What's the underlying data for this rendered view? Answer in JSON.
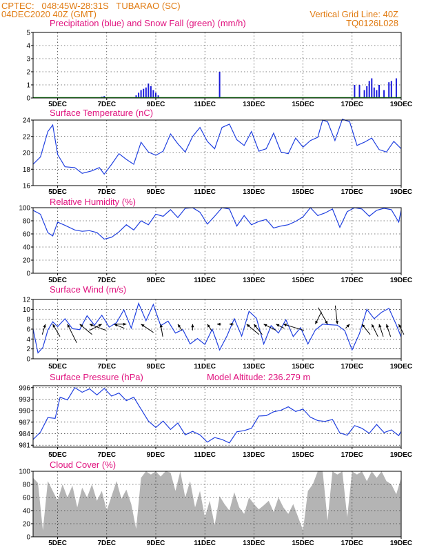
{
  "header": {
    "line1_left": "CPTEC:   048:45W-28:31S   TUBARAO (SC)",
    "line2_left": "04DEC2020 40Z (GMT)",
    "line2_right": "Vertical Grid Line: 40Z",
    "line3_right": "TQ0126L028"
  },
  "colors": {
    "header": "#e07a10",
    "panel_title": "#e0127e",
    "precipitation": "#1a1adc",
    "snowfall": "#1ea01e",
    "series_line": "#2040e0",
    "wind_arrow": "#000000",
    "cloud_fill": "#b4b4b4"
  },
  "x_axis": {
    "day_range": [
      4,
      19
    ],
    "tick_days": [
      5,
      7,
      9,
      11,
      13,
      15,
      17,
      19
    ],
    "tick_labels": [
      "5DEC",
      "7DEC",
      "9DEC",
      "11DEC",
      "13DEC",
      "15DEC",
      "17DEC",
      "19DEC"
    ]
  },
  "chart_data": [
    {
      "id": "precip",
      "type": "bar",
      "title": "Precipitation (blue) and Snow Fall (green) (mm/h)",
      "ylim": [
        0,
        5
      ],
      "yticks": [
        0,
        1,
        2,
        3,
        4,
        5
      ],
      "grid": true,
      "x": [
        6.8,
        6.9,
        8.2,
        8.3,
        8.4,
        8.5,
        8.6,
        8.7,
        8.8,
        8.9,
        9.0,
        9.1,
        11.6,
        17.1,
        17.3,
        17.5,
        17.6,
        17.7,
        17.8,
        17.9,
        18.0,
        18.1,
        18.3,
        18.5,
        18.6,
        18.8
      ],
      "values": [
        0.1,
        0.15,
        0.2,
        0.4,
        0.6,
        0.7,
        0.8,
        1.1,
        0.9,
        0.6,
        0.4,
        0.2,
        2.0,
        1.0,
        1.0,
        0.6,
        0.9,
        1.3,
        1.5,
        0.8,
        0.6,
        1.0,
        0.6,
        1.2,
        1.3,
        1.5
      ],
      "snow_values": [
        0,
        0,
        0,
        0,
        0,
        0,
        0,
        0,
        0,
        0,
        0,
        0,
        0,
        0,
        0,
        0,
        0,
        0,
        0,
        0,
        0,
        0,
        0,
        0,
        0,
        0
      ]
    },
    {
      "id": "temperature",
      "type": "line",
      "title": "Surface Temperature (nC)",
      "ylim": [
        16,
        24
      ],
      "yticks": [
        16,
        18,
        20,
        22,
        24
      ],
      "grid": true,
      "x": [
        4.0,
        4.3,
        4.6,
        4.8,
        5.0,
        5.3,
        5.7,
        6.0,
        6.4,
        6.7,
        6.9,
        7.2,
        7.5,
        7.8,
        8.1,
        8.4,
        8.7,
        9.0,
        9.3,
        9.6,
        9.9,
        10.2,
        10.5,
        10.8,
        11.1,
        11.4,
        11.7,
        12.0,
        12.3,
        12.6,
        12.9,
        13.2,
        13.5,
        13.8,
        14.1,
        14.4,
        14.7,
        15.0,
        15.3,
        15.6,
        15.8,
        16.0,
        16.3,
        16.6,
        16.9,
        17.2,
        17.5,
        17.8,
        18.1,
        18.4,
        18.7,
        19.0
      ],
      "values": [
        18.6,
        19.5,
        22.6,
        23.4,
        19.8,
        18.3,
        18.2,
        17.5,
        17.8,
        18.2,
        17.4,
        18.6,
        19.9,
        19.2,
        18.6,
        21.3,
        20.1,
        19.7,
        20.2,
        22.3,
        21.1,
        20.1,
        22.0,
        23.1,
        21.4,
        20.5,
        23.1,
        23.5,
        21.6,
        20.9,
        22.6,
        20.2,
        20.5,
        22.4,
        20.1,
        19.9,
        21.8,
        20.7,
        21.5,
        21.9,
        24.0,
        23.8,
        21.5,
        24.1,
        23.8,
        20.9,
        21.3,
        21.8,
        20.4,
        20.1,
        21.4,
        20.5
      ]
    },
    {
      "id": "humidity",
      "type": "line",
      "title": "Relative Humidity (%)",
      "ylim": [
        0,
        100
      ],
      "yticks": [
        0,
        20,
        40,
        60,
        80,
        100
      ],
      "grid": true,
      "x": [
        4.0,
        4.3,
        4.6,
        4.8,
        5.0,
        5.3,
        5.7,
        6.0,
        6.3,
        6.6,
        6.9,
        7.2,
        7.5,
        7.8,
        8.1,
        8.4,
        8.7,
        9.0,
        9.3,
        9.6,
        9.9,
        10.2,
        10.5,
        10.8,
        11.1,
        11.4,
        11.7,
        12.0,
        12.3,
        12.6,
        12.9,
        13.2,
        13.5,
        13.8,
        14.1,
        14.4,
        14.7,
        15.0,
        15.3,
        15.6,
        15.9,
        16.2,
        16.5,
        16.8,
        17.1,
        17.4,
        17.7,
        18.0,
        18.3,
        18.6,
        18.9,
        19.0
      ],
      "values": [
        96,
        90,
        62,
        57,
        78,
        73,
        66,
        64,
        65,
        62,
        52,
        55,
        63,
        74,
        66,
        80,
        74,
        90,
        87,
        97,
        85,
        99,
        100,
        93,
        75,
        87,
        100,
        98,
        72,
        88,
        74,
        79,
        82,
        69,
        72,
        74,
        79,
        86,
        100,
        88,
        92,
        98,
        70,
        94,
        100,
        98,
        87,
        96,
        99,
        97,
        78,
        96
      ]
    },
    {
      "id": "wind",
      "type": "line",
      "title": "Surface Wind (m/s)",
      "ylim": [
        0,
        12
      ],
      "yticks": [
        0,
        2,
        4,
        6,
        8,
        10,
        12
      ],
      "grid": true,
      "x": [
        4.0,
        4.2,
        4.4,
        4.6,
        4.8,
        5.0,
        5.3,
        5.6,
        5.9,
        6.2,
        6.5,
        6.8,
        7.1,
        7.4,
        7.7,
        8.0,
        8.3,
        8.6,
        8.9,
        9.2,
        9.5,
        9.8,
        10.1,
        10.4,
        10.7,
        11.0,
        11.3,
        11.6,
        11.9,
        12.2,
        12.5,
        12.8,
        13.1,
        13.4,
        13.7,
        14.0,
        14.3,
        14.6,
        14.9,
        15.2,
        15.5,
        15.8,
        16.1,
        16.4,
        16.7,
        17.0,
        17.3,
        17.6,
        17.9,
        18.2,
        18.5,
        18.8,
        19.0
      ],
      "values": [
        6.0,
        1.2,
        2.3,
        5.8,
        7.5,
        6.5,
        8.1,
        6.1,
        5.9,
        8.7,
        6.8,
        8.8,
        6.4,
        7.3,
        9.9,
        6.2,
        11.2,
        7.7,
        11.0,
        6.7,
        7.6,
        5.2,
        5.9,
        3.0,
        4.1,
        2.9,
        6.0,
        1.8,
        4.6,
        8.1,
        4.6,
        9.6,
        8.2,
        3.0,
        6.7,
        5.2,
        7.9,
        4.5,
        6.3,
        3.0,
        5.8,
        7.0,
        6.9,
        6.8,
        5.7,
        1.8,
        5.1,
        10.0,
        8.1,
        9.4,
        10.2,
        6.9,
        4.4
      ],
      "arrows": [
        {
          "x": 4.5,
          "dx": 0.15,
          "dy": 0.5
        },
        {
          "x": 4.8,
          "dx": -0.35,
          "dy": 0.6
        },
        {
          "x": 5.4,
          "dx": -0.45,
          "dy": 0.9
        },
        {
          "x": 5.9,
          "dx": -0.6,
          "dy": 0.5
        },
        {
          "x": 6.3,
          "dx": -0.8,
          "dy": 0.3
        },
        {
          "x": 6.8,
          "dx": 0.6,
          "dy": 0.3
        },
        {
          "x": 7.3,
          "dx": -0.5,
          "dy": 0.2
        },
        {
          "x": 7.8,
          "dx": 0.5,
          "dy": 0.0
        },
        {
          "x": 8.4,
          "dx": -0.6,
          "dy": 0.4
        },
        {
          "x": 9.2,
          "dx": -0.1,
          "dy": 0.6
        },
        {
          "x": 9.9,
          "dx": -0.2,
          "dy": 0.3
        },
        {
          "x": 10.5,
          "dx": 0.0,
          "dy": 0.3
        },
        {
          "x": 11.1,
          "dx": -0.2,
          "dy": 0.3
        },
        {
          "x": 11.5,
          "dx": -0.2,
          "dy": 0.0
        },
        {
          "x": 12.0,
          "dx": -0.2,
          "dy": 0.0
        },
        {
          "x": 12.7,
          "dx": -0.6,
          "dy": 0.5
        },
        {
          "x": 13.0,
          "dx": -0.4,
          "dy": 0.5
        },
        {
          "x": 13.4,
          "dx": -0.6,
          "dy": 0.3
        },
        {
          "x": 13.9,
          "dx": -0.4,
          "dy": 0.2
        },
        {
          "x": 14.2,
          "dx": -1.0,
          "dy": 0.3
        },
        {
          "x": 15.5,
          "dx": -0.3,
          "dy": -0.6
        },
        {
          "x": 16.0,
          "dx": 0.45,
          "dy": -0.8
        },
        {
          "x": 16.4,
          "dx": 0.1,
          "dy": -0.9
        },
        {
          "x": 16.9,
          "dx": 0.2,
          "dy": 0.2
        },
        {
          "x": 17.4,
          "dx": -0.4,
          "dy": 0.5
        },
        {
          "x": 17.8,
          "dx": -0.3,
          "dy": 0.6
        },
        {
          "x": 18.1,
          "dx": -0.2,
          "dy": 0.6
        },
        {
          "x": 18.4,
          "dx": -0.2,
          "dy": 0.6
        },
        {
          "x": 18.9,
          "dx": -0.25,
          "dy": 0.5
        }
      ]
    },
    {
      "id": "pressure",
      "type": "line",
      "title": "Surface Pressure (hPa)",
      "title_right": "Model Altitude: 236.279 m",
      "ylim": [
        980.5,
        996.5
      ],
      "yticks": [
        981,
        984,
        987,
        990,
        993,
        996
      ],
      "grid": true,
      "x": [
        4.0,
        4.3,
        4.6,
        4.9,
        5.1,
        5.4,
        5.7,
        6.0,
        6.3,
        6.6,
        6.9,
        7.2,
        7.5,
        7.8,
        8.1,
        8.4,
        8.7,
        9.0,
        9.3,
        9.6,
        9.9,
        10.2,
        10.5,
        10.8,
        11.1,
        11.4,
        11.7,
        12.0,
        12.3,
        12.6,
        12.9,
        13.2,
        13.5,
        13.8,
        14.1,
        14.4,
        14.7,
        15.0,
        15.3,
        15.6,
        15.9,
        16.2,
        16.5,
        16.8,
        17.1,
        17.4,
        17.7,
        18.0,
        18.3,
        18.6,
        18.9,
        19.0
      ],
      "values": [
        982.5,
        984.4,
        988.2,
        988.0,
        993.5,
        992.8,
        996.0,
        994.8,
        995.7,
        994.1,
        995.8,
        993.8,
        994.6,
        992.6,
        993.5,
        990.4,
        987.3,
        985.6,
        987.3,
        985.1,
        986.8,
        983.7,
        984.6,
        983.7,
        981.8,
        983.0,
        982.5,
        981.6,
        984.5,
        984.8,
        985.4,
        988.6,
        988.7,
        989.7,
        990.1,
        991.0,
        989.8,
        990.4,
        988.3,
        987.4,
        987.2,
        987.7,
        984.2,
        983.6,
        986.1,
        985.4,
        984.1,
        986.4,
        984.3,
        985.0,
        983.5,
        984.6
      ]
    },
    {
      "id": "cloud",
      "type": "area",
      "title": "Cloud Cover (%)",
      "ylim": [
        0,
        100
      ],
      "yticks": [
        0,
        20,
        40,
        60,
        80,
        100
      ],
      "grid": true,
      "x": [
        4.0,
        4.2,
        4.4,
        4.6,
        4.8,
        5.0,
        5.2,
        5.4,
        5.6,
        5.8,
        6.0,
        6.2,
        6.4,
        6.6,
        6.8,
        7.0,
        7.2,
        7.4,
        7.6,
        7.8,
        8.0,
        8.2,
        8.4,
        8.6,
        8.8,
        9.0,
        9.2,
        9.4,
        9.6,
        9.8,
        10.0,
        10.2,
        10.4,
        10.6,
        10.8,
        11.0,
        11.2,
        11.4,
        11.6,
        11.8,
        12.0,
        12.2,
        12.4,
        12.6,
        12.8,
        13.0,
        13.2,
        13.4,
        13.6,
        13.8,
        14.0,
        14.2,
        14.4,
        14.6,
        14.8,
        15.0,
        15.2,
        15.4,
        15.6,
        15.8,
        16.0,
        16.2,
        16.4,
        16.6,
        16.8,
        17.0,
        17.2,
        17.4,
        17.6,
        17.8,
        18.0,
        18.2,
        18.4,
        18.6,
        18.8,
        19.0
      ],
      "values": [
        90,
        82,
        10,
        85,
        70,
        55,
        80,
        60,
        78,
        45,
        75,
        60,
        80,
        55,
        70,
        40,
        62,
        85,
        58,
        72,
        50,
        12,
        90,
        100,
        95,
        100,
        92,
        100,
        98,
        70,
        100,
        60,
        85,
        45,
        70,
        30,
        55,
        18,
        62,
        50,
        40,
        68,
        45,
        35,
        60,
        50,
        42,
        48,
        55,
        38,
        60,
        45,
        35,
        50,
        30,
        10,
        70,
        80,
        100,
        100,
        25,
        100,
        95,
        100,
        30,
        100,
        95,
        100,
        85,
        100,
        90,
        100,
        85,
        80,
        65,
        90
      ]
    }
  ]
}
